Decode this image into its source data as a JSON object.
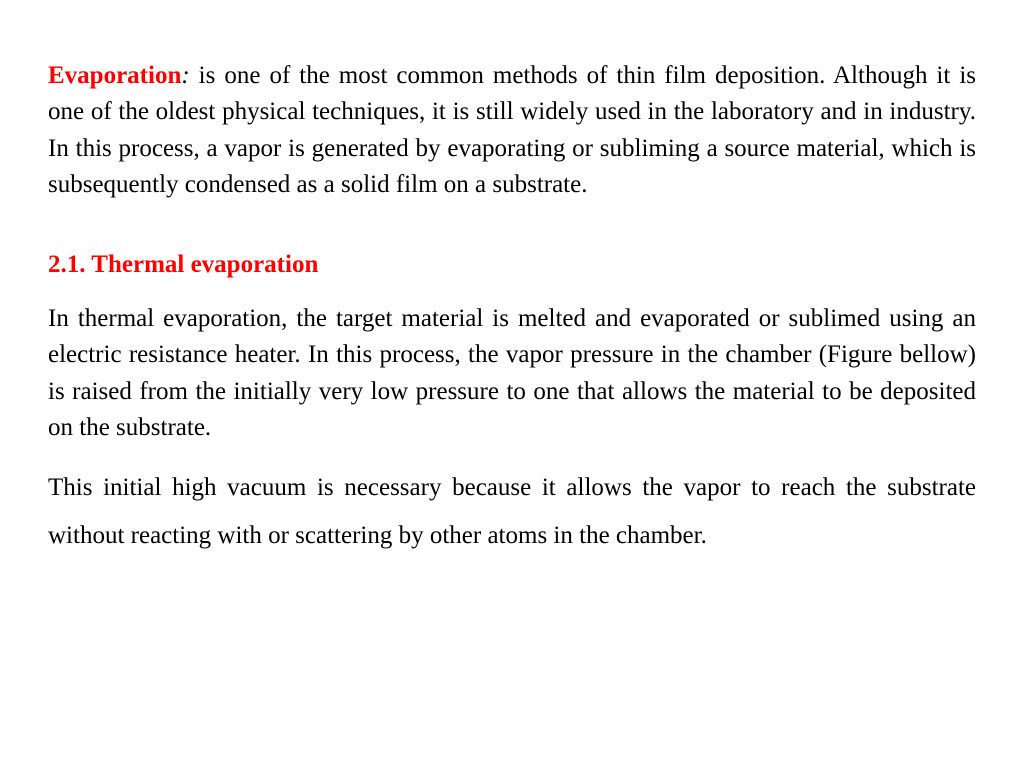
{
  "intro": {
    "term": "Evaporation",
    "colon": ":",
    "body": " is one of the most common methods of thin film deposition. Although it is one of the oldest physical techniques, it is still widely used in the laboratory and in industry. In this process, a vapor is generated by evaporating or subliming a source material, which is subsequently condensed as a solid film on a substrate."
  },
  "section": {
    "heading": "2.1. Thermal evaporation",
    "p1": " In thermal evaporation, the target material is melted and evaporated or sublimed using an electric resistance heater. In this process, the vapor pressure in the chamber (Figure bellow) is raised from the initially very low pressure to one that allows the material to be deposited on the substrate.",
    "p2": "This initial high vacuum is necessary because it allows the vapor to reach the substrate without reacting with or scattering by other atoms in the chamber."
  },
  "colors": {
    "highlight": "#ff0000",
    "text": "#000000",
    "background": "#ffffff"
  },
  "typography": {
    "family": "Times New Roman",
    "body_size_pt": 19,
    "heading_weight": "bold"
  }
}
